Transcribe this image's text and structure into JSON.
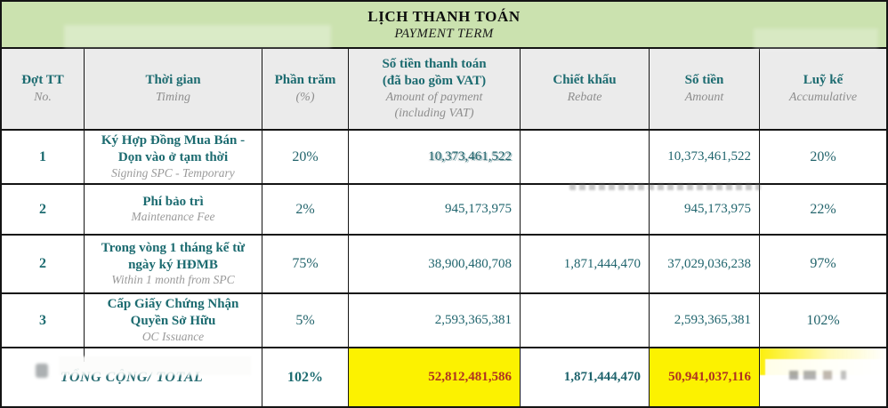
{
  "title": {
    "vi": "LỊCH THANH TOÁN",
    "en": "PAYMENT TERM"
  },
  "header": {
    "no": {
      "vi": "Đợt TT",
      "en": "No."
    },
    "timing": {
      "vi": "Thời gian",
      "en": "Timing"
    },
    "percent": {
      "vi": "Phần trăm",
      "en": "(%)"
    },
    "amount_vat": {
      "vi1": "Số tiền thanh toán",
      "vi2": "(đã bao gồm VAT)",
      "en1": "Amount of payment",
      "en2": "(including VAT)"
    },
    "rebate": {
      "vi": "Chiết khấu",
      "en": "Rebate"
    },
    "amount": {
      "vi": "Số tiền",
      "en": "Amount"
    },
    "accumulative": {
      "vi": "Luỹ kế",
      "en": "Accumulative"
    }
  },
  "rows": [
    {
      "no": "1",
      "label_vi": "Ký Hợp Đồng Mua Bán - Dọn vào ở tạm thời",
      "label_en": "Signing SPC - Temporary",
      "percent": "20%",
      "amount_vat": "10,373,461,522",
      "rebate": "",
      "amount": "10,373,461,522",
      "accumulative": "20%"
    },
    {
      "no": "2",
      "label_vi": "Phí bảo trì",
      "label_en": "Maintenance Fee",
      "percent": "2%",
      "amount_vat": "945,173,975",
      "rebate": "",
      "amount": "945,173,975",
      "accumulative": "22%"
    },
    {
      "no": "2",
      "label_vi": "Trong vòng 1 tháng kể từ ngày ký HĐMB",
      "label_en": "Within 1 month from SPC",
      "percent": "75%",
      "amount_vat": "38,900,480,708",
      "rebate": "1,871,444,470",
      "amount": "37,029,036,238",
      "accumulative": "97%"
    },
    {
      "no": "3",
      "label_vi": "Cấp Giấy Chứng Nhận Quyền Sở Hữu",
      "label_en": "OC Issuance",
      "percent": "5%",
      "amount_vat": "2,593,365,381",
      "rebate": "",
      "amount": "2,593,365,381",
      "accumulative": "102%"
    }
  ],
  "total": {
    "label": "TỔNG CỘNG/ TOTAL",
    "percent": "102%",
    "amount_vat": "52,812,481,586",
    "rebate": "1,871,444,470",
    "amount": "50,941,037,116",
    "accumulative": ""
  },
  "colors": {
    "band_green": "#cbe2af",
    "header_gray": "#ebebeb",
    "teal_text": "#1c6b70",
    "english_gray": "#8d8d8d",
    "highlight_yellow": "#fcf200",
    "total_red": "#b03321"
  }
}
